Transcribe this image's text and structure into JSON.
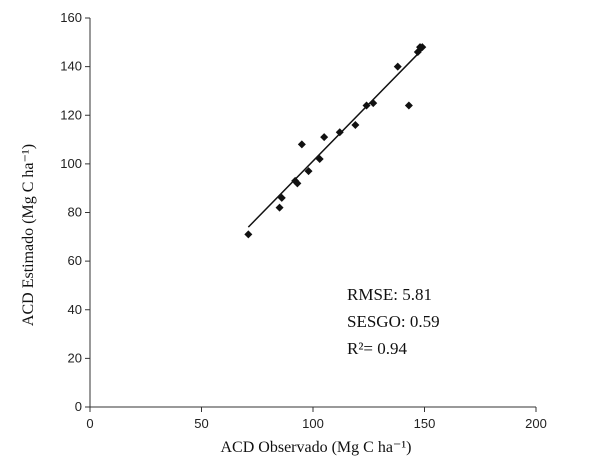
{
  "chart_data": {
    "type": "scatter",
    "xlabel": "ACD  Observado (Mg C ha⁻¹)",
    "ylabel": "ACD Estimado  (Mg C ha⁻¹)",
    "xlim": [
      0,
      200
    ],
    "ylim": [
      0,
      160
    ],
    "xticks": [
      "0",
      "50",
      "100",
      "150",
      "200"
    ],
    "yticks": [
      "0",
      "20",
      "40",
      "60",
      "80",
      "100",
      "120",
      "140",
      "160"
    ],
    "grid": false,
    "points": [
      {
        "x": 71,
        "y": 71
      },
      {
        "x": 85,
        "y": 82
      },
      {
        "x": 86,
        "y": 86
      },
      {
        "x": 92,
        "y": 93
      },
      {
        "x": 93,
        "y": 92
      },
      {
        "x": 95,
        "y": 108
      },
      {
        "x": 98,
        "y": 97
      },
      {
        "x": 103,
        "y": 102
      },
      {
        "x": 105,
        "y": 111
      },
      {
        "x": 112,
        "y": 113
      },
      {
        "x": 119,
        "y": 116
      },
      {
        "x": 124,
        "y": 124
      },
      {
        "x": 127,
        "y": 125
      },
      {
        "x": 138,
        "y": 140
      },
      {
        "x": 143,
        "y": 124
      },
      {
        "x": 147,
        "y": 146
      },
      {
        "x": 148,
        "y": 148
      },
      {
        "x": 149,
        "y": 148
      }
    ],
    "trendline": {
      "x": [
        71,
        150
      ],
      "y": [
        74,
        148
      ]
    },
    "annotations": [
      "RMSE: 5.81",
      "SESGO:  0.59",
      "R²= 0.94"
    ],
    "colors": {
      "marker": "#111111",
      "line": "#111111",
      "axis": "#333333"
    }
  }
}
